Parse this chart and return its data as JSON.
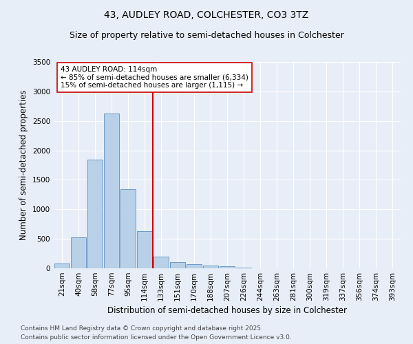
{
  "title1": "43, AUDLEY ROAD, COLCHESTER, CO3 3TZ",
  "title2": "Size of property relative to semi-detached houses in Colchester",
  "xlabel": "Distribution of semi-detached houses by size in Colchester",
  "ylabel": "Number of semi-detached properties",
  "categories": [
    "21sqm",
    "40sqm",
    "58sqm",
    "77sqm",
    "95sqm",
    "114sqm",
    "133sqm",
    "151sqm",
    "170sqm",
    "188sqm",
    "207sqm",
    "226sqm",
    "244sqm",
    "263sqm",
    "281sqm",
    "300sqm",
    "319sqm",
    "337sqm",
    "356sqm",
    "374sqm",
    "393sqm"
  ],
  "values": [
    80,
    530,
    1840,
    2630,
    1340,
    630,
    200,
    100,
    70,
    50,
    30,
    10,
    5,
    3,
    2,
    1,
    0,
    0,
    0,
    0,
    0
  ],
  "bar_color": "#b8d0e8",
  "bar_edge_color": "#5a8fc0",
  "vline_x": 5.5,
  "vline_color": "#cc0000",
  "ylim": [
    0,
    3500
  ],
  "yticks": [
    0,
    500,
    1000,
    1500,
    2000,
    2500,
    3000,
    3500
  ],
  "annotation_text": "43 AUDLEY ROAD: 114sqm\n← 85% of semi-detached houses are smaller (6,334)\n15% of semi-detached houses are larger (1,115) →",
  "annotation_box_color": "#ffffff",
  "annotation_box_edge": "#cc0000",
  "footer1": "Contains HM Land Registry data © Crown copyright and database right 2025.",
  "footer2": "Contains public sector information licensed under the Open Government Licence v3.0.",
  "bg_color": "#e8eef8",
  "plot_bg_color": "#e8eef8",
  "grid_color": "#ffffff",
  "title1_fontsize": 10,
  "title2_fontsize": 9,
  "axis_label_fontsize": 8.5,
  "tick_fontsize": 7.5,
  "annotation_fontsize": 7.5,
  "footer_fontsize": 6.5
}
